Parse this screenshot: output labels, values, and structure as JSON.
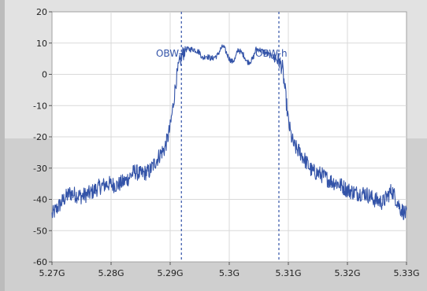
{
  "chart_data": {
    "type": "line",
    "title": "",
    "xlabel": "",
    "ylabel": "",
    "x_unit": "Hz",
    "xlim": [
      5270000000.0,
      5330000000.0
    ],
    "ylim": [
      -60,
      20
    ],
    "x_ticks": [
      5270000000.0,
      5280000000.0,
      5290000000.0,
      5300000000.0,
      5310000000.0,
      5320000000.0,
      5330000000.0
    ],
    "x_tick_labels": [
      "5.27G",
      "5.28G",
      "5.29G",
      "5.3G",
      "5.31G",
      "5.32G",
      "5.33G"
    ],
    "y_ticks": [
      20,
      10,
      0,
      -10,
      -20,
      -30,
      -40,
      -50,
      -60
    ],
    "y_tick_labels": [
      "20",
      "10",
      "0",
      "-10",
      "-20",
      "-30",
      "-40",
      "-50",
      "-60"
    ],
    "grid": true,
    "legend": "none",
    "series_color": "#3353a8",
    "series": [
      {
        "x": [
          5270000000.0,
          5272000000.0,
          5273000000.0,
          5275000000.0,
          5276500000.0,
          5278000000.0,
          5279500000.0,
          5281000000.0,
          5282500000.0,
          5284000000.0,
          5285000000.0,
          5286500000.0,
          5287500000.0,
          5288500000.0,
          5289000000.0,
          5289500000.0,
          5290000000.0,
          5290500000.0,
          5291000000.0,
          5291500000.0,
          5292000000.0,
          5292500000.0,
          5293000000.0,
          5294000000.0,
          5295000000.0,
          5295500000.0,
          5296000000.0,
          5297000000.0,
          5298000000.0,
          5298500000.0,
          5299000000.0,
          5299500000.0,
          5300000000.0,
          5300500000.0,
          5301000000.0,
          5301500000.0,
          5302000000.0,
          5302500000.0,
          5303000000.0,
          5303500000.0,
          5304000000.0,
          5304500000.0,
          5305000000.0,
          5306000000.0,
          5307000000.0,
          5308000000.0,
          5308500000.0,
          5309000000.0,
          5309500000.0,
          5310000000.0,
          5310500000.0,
          5311000000.0,
          5312000000.0,
          5313000000.0,
          5314000000.0,
          5315500000.0,
          5317000000.0,
          5318500000.0,
          5320000000.0,
          5321500000.0,
          5323000000.0,
          5324500000.0,
          5326000000.0,
          5327500000.0,
          5329000000.0,
          5330000000.0
        ],
        "y": [
          -45,
          -40,
          -38,
          -39,
          -38,
          -36,
          -35,
          -35.5,
          -34,
          -31,
          -32,
          -31,
          -28,
          -25,
          -24,
          -21,
          -17,
          -10,
          -2,
          3,
          6,
          8,
          8,
          8,
          7,
          5,
          6,
          5,
          6,
          8,
          9,
          7,
          5,
          4,
          5,
          8,
          7,
          6,
          4,
          4,
          5,
          8,
          8,
          7,
          6,
          5,
          4,
          2,
          -6,
          -15,
          -20,
          -23,
          -25,
          -28,
          -31,
          -32,
          -34,
          -35,
          -37,
          -38,
          -38,
          -40,
          -41,
          -37,
          -43,
          -45
        ]
      }
    ],
    "markers": [
      {
        "label": "OBW-l",
        "x": 5291900000.0
      },
      {
        "label": "OBW-h",
        "x": 5308400000.0
      }
    ]
  }
}
